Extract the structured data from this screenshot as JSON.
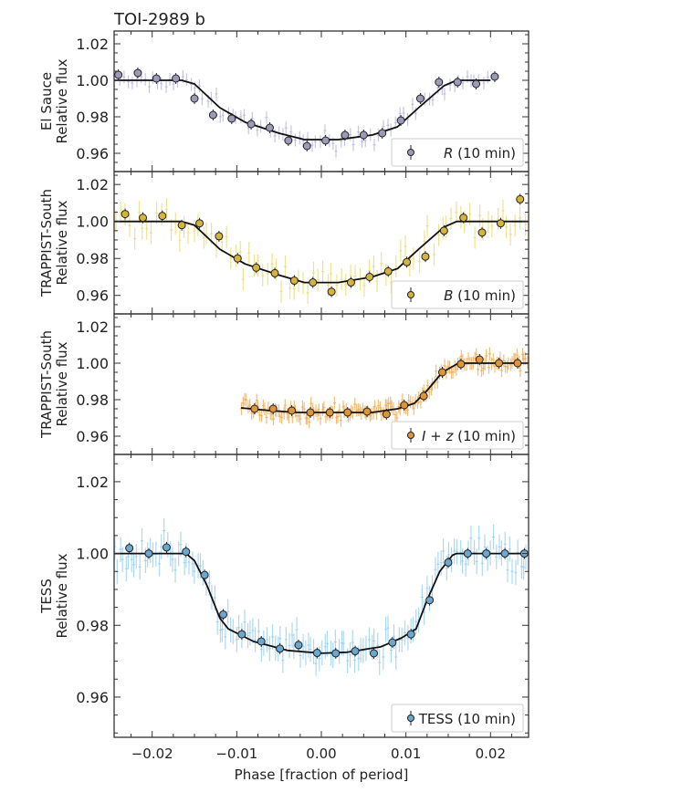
{
  "chart_data": {
    "title": "TOI-2989 b",
    "xlabel": "Phase [fraction of period]",
    "xlim": [
      -0.0245,
      0.0245
    ],
    "xticks": [
      -0.02,
      -0.01,
      0.0,
      0.01,
      0.02
    ],
    "xtick_labels": [
      "−0.02",
      "−0.01",
      "0.00",
      "0.01",
      "0.02"
    ],
    "panels": [
      {
        "type": "scatter",
        "ylabel": [
          "El Sauce",
          "Relative flux"
        ],
        "ylim": [
          0.95,
          1.027
        ],
        "yticks": [
          0.96,
          0.98,
          1.0,
          1.02
        ],
        "ytick_labels": [
          "0.96",
          "0.98",
          "1.00",
          "1.02"
        ],
        "legend": {
          "filter": "R",
          "suffix": " (10 min)",
          "italic": true,
          "placement": "bottom-right"
        },
        "color_binned": "#9c9ab9",
        "color_raw": "#b6b2dc",
        "binned": {
          "x": [
            -0.024,
            -0.0217,
            -0.0195,
            -0.0172,
            -0.015,
            -0.0128,
            -0.0106,
            -0.0083,
            -0.0061,
            -0.0039,
            -0.0017,
            0.0005,
            0.0028,
            0.005,
            0.0072,
            0.0094,
            0.0117,
            0.0139,
            0.0161,
            0.0183,
            0.0205
          ],
          "y": [
            1.003,
            1.004,
            1.001,
            1.001,
            0.99,
            0.981,
            0.979,
            0.976,
            0.974,
            0.967,
            0.964,
            0.967,
            0.97,
            0.97,
            0.971,
            0.978,
            0.99,
            0.999,
            0.999,
            0.998,
            1.002
          ]
        },
        "model": {
          "x": [
            -0.0245,
            -0.0165,
            -0.015,
            -0.012,
            -0.009,
            -0.005,
            -0.002,
            0.002,
            0.006,
            0.009,
            0.0115,
            0.0145,
            0.016,
            0.02
          ],
          "y": [
            1.0,
            1.0,
            0.998,
            0.985,
            0.977,
            0.971,
            0.9675,
            0.9675,
            0.97,
            0.9745,
            0.985,
            0.997,
            1.0,
            1.0
          ]
        }
      },
      {
        "type": "scatter",
        "ylabel": [
          "TRAPPIST-South",
          "Relative flux"
        ],
        "ylim": [
          0.95,
          1.027
        ],
        "yticks": [
          0.96,
          0.98,
          1.0,
          1.02
        ],
        "ytick_labels": [
          "0.96",
          "0.98",
          "1.00",
          "1.02"
        ],
        "legend": {
          "filter": "B",
          "suffix": " (10 min)",
          "italic": true,
          "placement": "bottom-right"
        },
        "color_binned": "#d4b43c",
        "color_raw": "#ecd86c",
        "binned": {
          "x": [
            -0.0232,
            -0.0211,
            -0.0188,
            -0.0165,
            -0.0144,
            -0.0121,
            -0.0099,
            -0.0077,
            -0.0055,
            -0.0032,
            -0.001,
            0.0012,
            0.0035,
            0.0057,
            0.0079,
            0.0101,
            0.0123,
            0.0145,
            0.0168,
            0.019,
            0.0212,
            0.0235
          ],
          "y": [
            1.004,
            1.002,
            1.003,
            0.998,
            0.999,
            0.992,
            0.98,
            0.975,
            0.972,
            0.968,
            0.967,
            0.962,
            0.967,
            0.97,
            0.973,
            0.978,
            0.981,
            0.995,
            1.002,
            0.994,
            0.999,
            1.012
          ]
        },
        "model": {
          "x": [
            -0.0245,
            -0.0165,
            -0.015,
            -0.012,
            -0.009,
            -0.005,
            -0.002,
            0.002,
            0.006,
            0.009,
            0.0115,
            0.0145,
            0.016,
            0.0245
          ],
          "y": [
            1.0,
            1.0,
            0.998,
            0.985,
            0.977,
            0.971,
            0.967,
            0.967,
            0.97,
            0.9745,
            0.985,
            0.997,
            1.0,
            1.0
          ]
        }
      },
      {
        "type": "scatter",
        "ylabel": [
          "TRAPPIST-South",
          "Relative flux"
        ],
        "ylim": [
          0.95,
          1.027
        ],
        "yticks": [
          0.96,
          0.98,
          1.0,
          1.02
        ],
        "ytick_labels": [
          "0.96",
          "0.98",
          "1.00",
          "1.02"
        ],
        "legend": {
          "filter": "I + z",
          "suffix": " (10 min)",
          "italic": true,
          "placement": "bottom-right"
        },
        "color_binned": "#de9438",
        "color_raw": "#f0a84e",
        "binned": {
          "x": [
            -0.0079,
            -0.0057,
            -0.0035,
            -0.0013,
            0.001,
            0.0031,
            0.0054,
            0.0077,
            0.0098,
            0.0121,
            0.0143,
            0.0165,
            0.0187,
            0.021,
            0.0232
          ],
          "y": [
            0.975,
            0.975,
            0.974,
            0.973,
            0.973,
            0.973,
            0.9735,
            0.972,
            0.977,
            0.982,
            0.995,
            0.9995,
            1.002,
            1.0,
            1.0
          ]
        },
        "model": {
          "x": [
            -0.0095,
            -0.006,
            -0.003,
            0.0,
            0.006,
            0.009,
            0.011,
            0.0125,
            0.0143,
            0.0162,
            0.0245
          ],
          "y": [
            0.9755,
            0.974,
            0.973,
            0.973,
            0.973,
            0.975,
            0.978,
            0.985,
            0.995,
            1.0,
            1.0
          ]
        }
      },
      {
        "type": "scatter",
        "ylabel": [
          "TESS",
          "Relative flux"
        ],
        "ylim": [
          0.9488,
          1.0276
        ],
        "yticks": [
          0.96,
          0.98,
          1.0,
          1.02
        ],
        "ytick_labels": [
          "0.96",
          "0.98",
          "1.00",
          "1.02"
        ],
        "legend": {
          "filter": "TESS",
          "suffix": " (10 min)",
          "italic": false,
          "placement": "bottom-right"
        },
        "color_binned": "#6ba7ce",
        "color_raw": "#92cbf0",
        "binned": {
          "x": [
            -0.0227,
            -0.0204,
            -0.0183,
            -0.016,
            -0.0138,
            -0.0116,
            -0.0094,
            -0.0071,
            -0.0049,
            -0.0027,
            -0.0005,
            0.0017,
            0.004,
            0.0062,
            0.0084,
            0.0106,
            0.0128,
            0.015,
            0.0173,
            0.0195,
            0.0217,
            0.024
          ],
          "y": [
            1.0015,
            1.0,
            1.0017,
            1.0005,
            0.994,
            0.983,
            0.9775,
            0.9755,
            0.9735,
            0.9745,
            0.9723,
            0.9722,
            0.9728,
            0.9722,
            0.9752,
            0.9775,
            0.987,
            0.9975,
            1.0,
            1.0,
            1.0,
            1.0
          ]
        },
        "model": {
          "x": [
            -0.0245,
            -0.016,
            -0.015,
            -0.0135,
            -0.012,
            -0.011,
            -0.008,
            -0.004,
            0.0,
            0.003,
            0.007,
            0.0095,
            0.0112,
            0.0125,
            0.014,
            0.0155,
            0.016,
            0.0245
          ],
          "y": [
            1.0,
            1.0,
            0.998,
            0.991,
            0.982,
            0.979,
            0.9755,
            0.973,
            0.9722,
            0.9725,
            0.974,
            0.9765,
            0.979,
            0.987,
            0.995,
            0.9995,
            1.0,
            1.0
          ]
        }
      }
    ]
  }
}
